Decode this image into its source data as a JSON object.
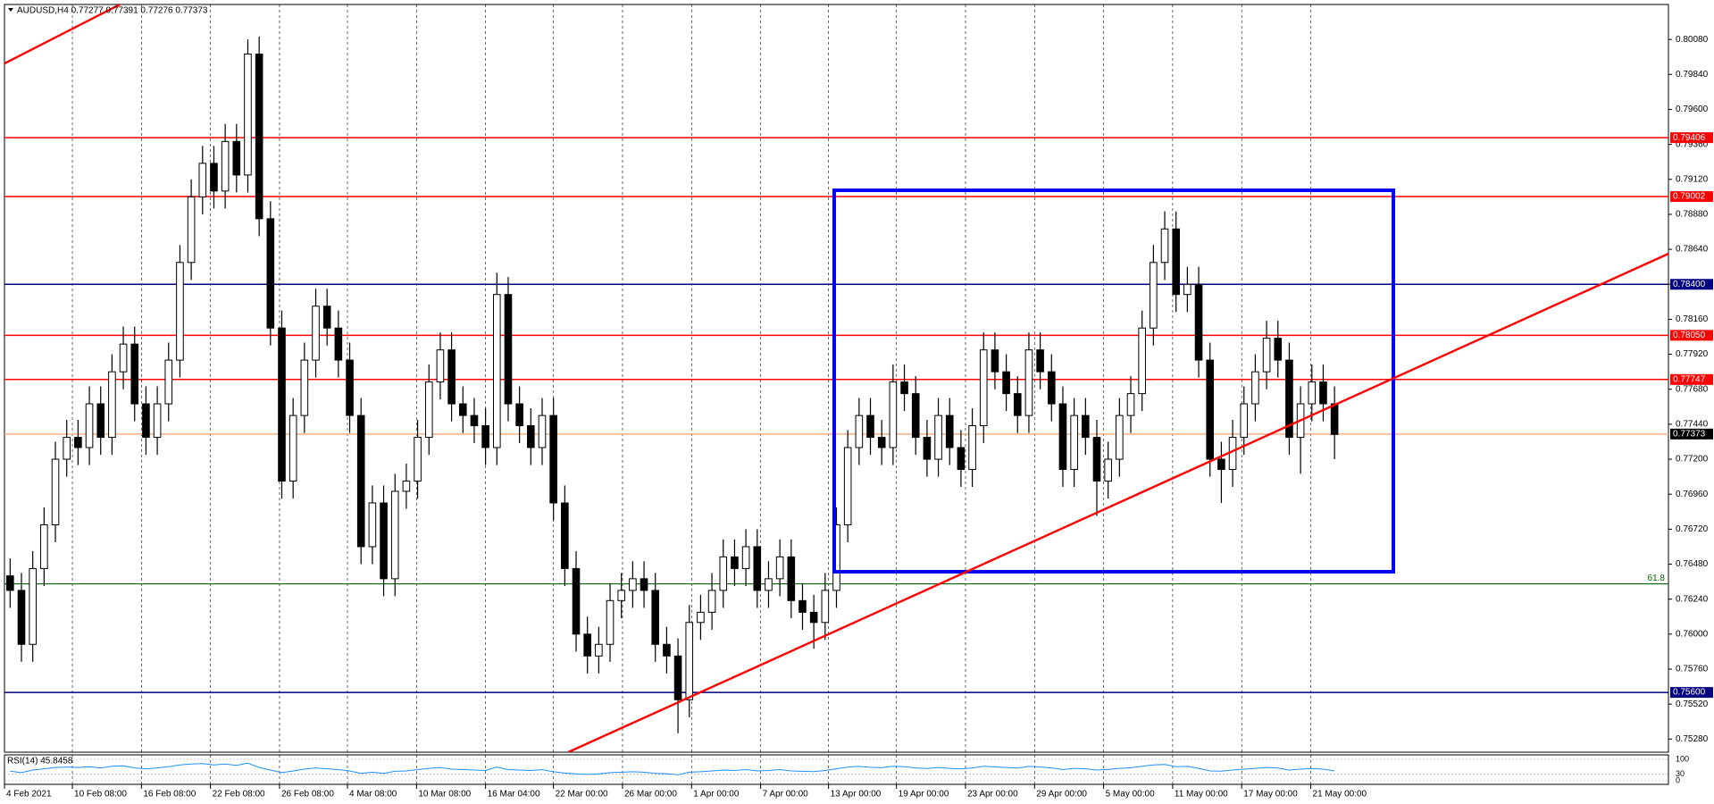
{
  "chart_data": {
    "type": "candlestick",
    "title": "AUDUSD,H4  0.77277 0.77391 0.77276 0.77373",
    "open": [
      0.764,
      0.763,
      0.7593,
      0.7645,
      0.7675,
      0.772,
      0.7735,
      0.7728,
      0.7758,
      0.7735,
      0.778,
      0.7799,
      0.7758,
      0.7735,
      0.7758,
      0.7788,
      0.7855,
      0.79,
      0.7923,
      0.7904,
      0.7938,
      0.7915,
      0.7998,
      0.7885,
      0.781,
      0.7705,
      0.775,
      0.7788,
      0.7825,
      0.781,
      0.7788,
      0.775,
      0.766,
      0.769,
      0.7638,
      0.7698,
      0.7705,
      0.7735,
      0.7773,
      0.7795,
      0.7758,
      0.775,
      0.7743,
      0.7728,
      0.7833,
      0.7758,
      0.7743,
      0.7728,
      0.775,
      0.769,
      0.7645,
      0.76,
      0.7585,
      0.7593,
      0.7623,
      0.763,
      0.7638,
      0.763,
      0.7593,
      0.7585,
      0.7555,
      0.7608,
      0.7615,
      0.763,
      0.7653,
      0.7645,
      0.766,
      0.763,
      0.7638,
      0.7653,
      0.7623,
      0.7615,
      0.7608,
      0.763,
      0.7675,
      0.7728,
      0.775,
      0.7735,
      0.7728,
      0.7773,
      0.7765,
      0.7735,
      0.772,
      0.775,
      0.7728,
      0.7713,
      0.7743,
      0.7795,
      0.778,
      0.7765,
      0.775,
      0.7795,
      0.778,
      0.7758,
      0.7713,
      0.775,
      0.7735,
      0.7705,
      0.772,
      0.775,
      0.7765,
      0.781,
      0.7855,
      0.7878,
      0.7833,
      0.784,
      0.7788,
      0.772,
      0.7713,
      0.7735,
      0.7758,
      0.778,
      0.7803,
      0.7788,
      0.7735,
      0.7758,
      0.7773,
      0.7758
    ],
    "high": [
      0.7652,
      0.7642,
      0.7657,
      0.7687,
      0.7732,
      0.7747,
      0.7747,
      0.777,
      0.777,
      0.7792,
      0.7811,
      0.7811,
      0.777,
      0.777,
      0.78,
      0.7867,
      0.7912,
      0.7935,
      0.7935,
      0.795,
      0.795,
      0.8008,
      0.801,
      0.7897,
      0.7822,
      0.7762,
      0.78,
      0.7837,
      0.7837,
      0.7822,
      0.78,
      0.7762,
      0.7702,
      0.7702,
      0.771,
      0.7717,
      0.7747,
      0.7785,
      0.7807,
      0.7807,
      0.777,
      0.7762,
      0.7755,
      0.7848,
      0.7845,
      0.777,
      0.7755,
      0.7762,
      0.7762,
      0.7702,
      0.7657,
      0.7612,
      0.7605,
      0.7635,
      0.7642,
      0.765,
      0.765,
      0.7642,
      0.7605,
      0.7597,
      0.762,
      0.7627,
      0.7642,
      0.7665,
      0.7665,
      0.7672,
      0.7672,
      0.765,
      0.7665,
      0.7665,
      0.7635,
      0.7627,
      0.7642,
      0.7687,
      0.774,
      0.7762,
      0.7762,
      0.7747,
      0.7785,
      0.7785,
      0.7777,
      0.7747,
      0.7762,
      0.7762,
      0.774,
      0.7755,
      0.7807,
      0.7807,
      0.7792,
      0.7777,
      0.7807,
      0.7807,
      0.7792,
      0.777,
      0.7762,
      0.7762,
      0.7747,
      0.7732,
      0.7762,
      0.7777,
      0.7822,
      0.7867,
      0.789,
      0.789,
      0.7852,
      0.7852,
      0.78,
      0.7732,
      0.7747,
      0.777,
      0.7792,
      0.7815,
      0.7815,
      0.78,
      0.777,
      0.7785,
      0.7785,
      0.777
    ],
    "low": [
      0.7618,
      0.7581,
      0.7581,
      0.7633,
      0.7663,
      0.7708,
      0.7716,
      0.7716,
      0.7723,
      0.7723,
      0.7768,
      0.7746,
      0.7723,
      0.7723,
      0.7746,
      0.7776,
      0.7843,
      0.7888,
      0.7892,
      0.7892,
      0.7903,
      0.7903,
      0.7873,
      0.7798,
      0.7693,
      0.7693,
      0.7738,
      0.7776,
      0.7798,
      0.7776,
      0.7738,
      0.7648,
      0.7648,
      0.7626,
      0.7626,
      0.7686,
      0.7693,
      0.7723,
      0.7761,
      0.7746,
      0.7738,
      0.7731,
      0.7716,
      0.7716,
      0.7746,
      0.7731,
      0.7716,
      0.7716,
      0.7678,
      0.7633,
      0.7588,
      0.7573,
      0.7573,
      0.7581,
      0.7611,
      0.7618,
      0.7618,
      0.7581,
      0.7573,
      0.7532,
      0.7543,
      0.7596,
      0.7603,
      0.7618,
      0.7633,
      0.7633,
      0.7618,
      0.7618,
      0.7626,
      0.7611,
      0.7603,
      0.759,
      0.7596,
      0.7618,
      0.7663,
      0.7716,
      0.7723,
      0.7716,
      0.7716,
      0.7753,
      0.7723,
      0.7708,
      0.7708,
      0.7716,
      0.7701,
      0.7701,
      0.7731,
      0.7768,
      0.7753,
      0.7738,
      0.7738,
      0.7768,
      0.7746,
      0.7701,
      0.7701,
      0.7723,
      0.7681,
      0.7693,
      0.7708,
      0.7738,
      0.7753,
      0.7798,
      0.7843,
      0.7821,
      0.7821,
      0.7776,
      0.7708,
      0.769,
      0.7701,
      0.7723,
      0.7746,
      0.7768,
      0.7776,
      0.7723,
      0.771,
      0.7746,
      0.7746,
      0.772
    ],
    "close": [
      0.763,
      0.7593,
      0.7645,
      0.7675,
      0.772,
      0.7735,
      0.7728,
      0.7758,
      0.7735,
      0.778,
      0.7799,
      0.7758,
      0.7735,
      0.7758,
      0.7788,
      0.7855,
      0.79,
      0.7923,
      0.7904,
      0.7938,
      0.7915,
      0.7998,
      0.7885,
      0.781,
      0.7705,
      0.775,
      0.7788,
      0.7825,
      0.781,
      0.7788,
      0.775,
      0.766,
      0.769,
      0.7638,
      0.7698,
      0.7705,
      0.7735,
      0.7773,
      0.7795,
      0.7758,
      0.775,
      0.7743,
      0.7728,
      0.7833,
      0.7758,
      0.7743,
      0.7728,
      0.775,
      0.769,
      0.7645,
      0.76,
      0.7585,
      0.7593,
      0.7623,
      0.763,
      0.7638,
      0.763,
      0.7593,
      0.7585,
      0.7555,
      0.7608,
      0.7615,
      0.763,
      0.7653,
      0.7645,
      0.766,
      0.763,
      0.7638,
      0.7653,
      0.7623,
      0.7615,
      0.7608,
      0.763,
      0.7675,
      0.7728,
      0.775,
      0.7735,
      0.7728,
      0.7773,
      0.7765,
      0.7735,
      0.772,
      0.775,
      0.7728,
      0.7713,
      0.7743,
      0.7795,
      0.778,
      0.7765,
      0.775,
      0.7795,
      0.778,
      0.7758,
      0.7713,
      0.775,
      0.7735,
      0.7705,
      0.772,
      0.775,
      0.7765,
      0.781,
      0.7855,
      0.7878,
      0.7833,
      0.784,
      0.7788,
      0.772,
      0.7713,
      0.7735,
      0.7758,
      0.778,
      0.7803,
      0.7788,
      0.7735,
      0.7758,
      0.7773,
      0.7758,
      0.7737
    ],
    "up_color": "#ffffff",
    "down_color": "#000000",
    "xlim": [
      -0.5,
      146.5
    ],
    "xticks": [
      {
        "value": -0.5,
        "label": "4 Feb 2021"
      },
      {
        "value": 5.5,
        "label": "10 Feb 08:00"
      },
      {
        "value": 11.6,
        "label": "16 Feb 08:00"
      },
      {
        "value": 17.7,
        "label": "22 Feb 08:00"
      },
      {
        "value": 23.8,
        "label": "26 Feb 08:00"
      },
      {
        "value": 29.8,
        "label": "4 Mar 08:00"
      },
      {
        "value": 35.9,
        "label": "10 Mar 08:00"
      },
      {
        "value": 42,
        "label": "16 Mar 04:00"
      },
      {
        "value": 48,
        "label": "22 Mar 00:00"
      },
      {
        "value": 54.1,
        "label": "26 Mar 00:00"
      },
      {
        "value": 60.2,
        "label": "1 Apr 00:00"
      },
      {
        "value": 66.3,
        "label": "7 Apr 00:00"
      },
      {
        "value": 72.3,
        "label": "13 Apr 00:00"
      },
      {
        "value": 78.3,
        "label": "19 Apr 00:00"
      },
      {
        "value": 84.4,
        "label": "23 Apr 00:00"
      },
      {
        "value": 90.5,
        "label": "29 Apr 00:00"
      },
      {
        "value": 96.6,
        "label": "5 May 00:00"
      },
      {
        "value": 102.7,
        "label": "11 May 00:00"
      },
      {
        "value": 108.8,
        "label": "17 May 00:00"
      },
      {
        "value": 114.9,
        "label": "21 May 00:00"
      }
    ],
    "ylim": [
      0.7519,
      0.8032
    ],
    "yticks": [
      {
        "value": 0.7528,
        "label": "0.75280"
      },
      {
        "value": 0.7552,
        "label": "0.75520"
      },
      {
        "value": 0.7576,
        "label": "0.75760"
      },
      {
        "value": 0.76,
        "label": "0.76000"
      },
      {
        "value": 0.7624,
        "label": "0.76240"
      },
      {
        "value": 0.7648,
        "label": "0.76480"
      },
      {
        "value": 0.7672,
        "label": "0.76720"
      },
      {
        "value": 0.7696,
        "label": "0.76960"
      },
      {
        "value": 0.772,
        "label": "0.77200"
      },
      {
        "value": 0.7744,
        "label": "0.77440"
      },
      {
        "value": 0.7768,
        "label": "0.77680"
      },
      {
        "value": 0.7792,
        "label": "0.77920"
      },
      {
        "value": 0.7816,
        "label": "0.78160"
      },
      {
        "value": 0.784,
        "label": "0.78400"
      },
      {
        "value": 0.7864,
        "label": "0.78640"
      },
      {
        "value": 0.7888,
        "label": "0.78880"
      },
      {
        "value": 0.7912,
        "label": "0.79120"
      },
      {
        "value": 0.7936,
        "label": "0.79360"
      },
      {
        "value": 0.796,
        "label": "0.79600"
      },
      {
        "value": 0.7984,
        "label": "0.79840"
      },
      {
        "value": 0.8008,
        "label": "0.80080"
      }
    ],
    "grid": true,
    "levels": [
      {
        "value": 0.79406,
        "color": "#ff0000"
      },
      {
        "value": 0.79002,
        "color": "#ff0000"
      },
      {
        "value": 0.784,
        "label": "0.78400",
        "color": "#000080"
      },
      {
        "value": 0.7805,
        "label": "0.78050",
        "color": "#ff0000"
      },
      {
        "value": 0.77747,
        "color": "#ff0000"
      },
      {
        "value": 0.756,
        "label": "0.75600",
        "color": "#000080"
      }
    ],
    "current_price": {
      "value": 0.77373,
      "color": "#f4b183",
      "tag_color": "#000000"
    },
    "fibonacci": {
      "value": 0.76345,
      "label": "61.8",
      "color": "#006400"
    },
    "rectangle": {
      "x": [
        72.8,
        122.2
      ],
      "y": [
        0.79045,
        0.76428
      ],
      "color": "#0000ff"
    },
    "trendlines": [
      {
        "x": [
          49.3,
          146.5
        ],
        "y": [
          0.7519,
          0.7861
        ],
        "color": "#ff0000"
      },
      {
        "x": [
          -0.5,
          9.7
        ],
        "y": [
          0.79915,
          0.8032
        ],
        "color": "#ff0000"
      }
    ],
    "rsi": {
      "title": "RSI(14) 45.8458",
      "color": "#1e90ff",
      "ylim": [
        0,
        100
      ],
      "yticks": [
        0,
        30,
        100
      ],
      "values": [
        45,
        38,
        50,
        56,
        62,
        64,
        62,
        66,
        60,
        68,
        70,
        60,
        56,
        60,
        66,
        74,
        78,
        80,
        74,
        78,
        72,
        82,
        62,
        50,
        38,
        46,
        54,
        60,
        56,
        52,
        46,
        34,
        40,
        34,
        44,
        46,
        52,
        58,
        62,
        54,
        52,
        50,
        48,
        64,
        52,
        50,
        48,
        52,
        42,
        36,
        32,
        30,
        32,
        38,
        40,
        42,
        40,
        34,
        33,
        28,
        40,
        42,
        46,
        50,
        48,
        52,
        46,
        48,
        52,
        46,
        44,
        43,
        48,
        56,
        64,
        67,
        63,
        61,
        68,
        66,
        60,
        57,
        62,
        58,
        55,
        60,
        68,
        65,
        62,
        59,
        67,
        64,
        60,
        52,
        58,
        56,
        50,
        53,
        58,
        61,
        68,
        74,
        76,
        66,
        67,
        58,
        46,
        45,
        50,
        54,
        58,
        62,
        59,
        50,
        54,
        57,
        54,
        46
      ]
    }
  }
}
